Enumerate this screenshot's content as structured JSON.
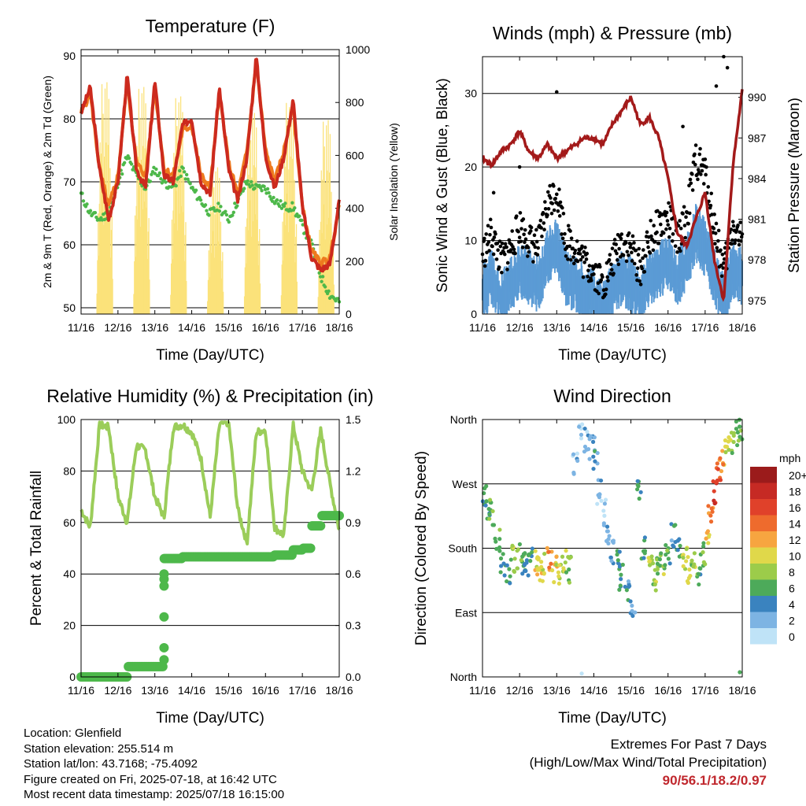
{
  "colors": {
    "temp_2m": "#cc2a1e",
    "temp_9m": "#ee7a1e",
    "dewpoint": "#4db84a",
    "solar": "#fbe27a",
    "wind": "#5b9bd5",
    "gust": "#000000",
    "pressure": "#a31a1a",
    "rh": "#9bcd5a",
    "precip": "#4db84a",
    "extremes": "#c0272d"
  },
  "x_ticks": [
    "11/16",
    "12/16",
    "13/16",
    "14/16",
    "15/16",
    "16/16",
    "17/16",
    "18/16"
  ],
  "panels": {
    "temperature": {
      "title": "Temperature (F)",
      "ylabel_left": "2m & 9m T (Red, Orange) & 2m Td (Green)",
      "ylabel_right": "Solar Insolation (Yellow)",
      "xlabel": "Time (Day/UTC)"
    },
    "winds": {
      "title": "Winds (mph) & Pressure (mb)",
      "ylabel_left": "Sonic Wind & Gust (Blue, Black)",
      "ylabel_right": "Station Pressure (Maroon)",
      "xlabel": "Time (Day/UTC)"
    },
    "humidity": {
      "title": "Relative Humidity (%) & Precipitation (in)",
      "ylabel_left": "Percent & Total Rainfall",
      "xlabel": "Time (Day/UTC)"
    },
    "direction": {
      "title": "Wind Direction",
      "ylabel_left": "Direction (Colored By Speed)",
      "xlabel": "Time (Day/UTC)",
      "legend_title": "mph",
      "legend_labels": [
        "20+",
        "18",
        "16",
        "14",
        "12",
        "10",
        "8",
        "6",
        "4",
        "2",
        "0"
      ],
      "legend_colors": [
        "#9b1b1b",
        "#c62a24",
        "#e0412a",
        "#ee6b2d",
        "#f7a540",
        "#e0d84a",
        "#9ccc4a",
        "#4daa5a",
        "#3a83bf",
        "#7db4e3",
        "#bfe3f7"
      ]
    }
  },
  "chart_data": [
    {
      "type": "line",
      "title": "Temperature (F)",
      "xlabel": "Time (Day/UTC)",
      "x": [
        0,
        0.25,
        0.5,
        0.75,
        1,
        1.25,
        1.5,
        1.75,
        2,
        2.25,
        2.5,
        2.75,
        3,
        3.25,
        3.5,
        3.75,
        4,
        4.25,
        4.5,
        4.75,
        5,
        5.25,
        5.5,
        5.75,
        6,
        6.25,
        6.5,
        6.75,
        7
      ],
      "ylim": [
        49,
        91
      ],
      "y2lim": [
        0,
        1000
      ],
      "series": [
        {
          "name": "2m T (Red)",
          "values": [
            81,
            85,
            72,
            64,
            70,
            87,
            72,
            69,
            86,
            71,
            70,
            79,
            80,
            70,
            68,
            85,
            72,
            67,
            74,
            90,
            74,
            69,
            74,
            83,
            66,
            58,
            56,
            57,
            67
          ]
        },
        {
          "name": "9m T (Orange)",
          "values": [
            81,
            84,
            72,
            66,
            71,
            86,
            73,
            71,
            85,
            72,
            71,
            78,
            79,
            71,
            69,
            84,
            73,
            68,
            75,
            89,
            75,
            70,
            75,
            82,
            66,
            59,
            57,
            58,
            66
          ]
        },
        {
          "name": "2m Td (Green)",
          "values": [
            68,
            65,
            64,
            65,
            70,
            74,
            71,
            69,
            72,
            70,
            69,
            72,
            69,
            67,
            65,
            66,
            64,
            67,
            70,
            69,
            69,
            67,
            66,
            66,
            63,
            60,
            55,
            52,
            51
          ]
        },
        {
          "name": "Solar Insolation (Yellow)",
          "values": [
            900,
            980,
            0,
            0,
            0,
            960,
            0,
            0,
            920,
            0,
            0,
            620,
            600,
            0,
            0,
            850,
            0,
            0,
            500,
            900,
            0,
            0,
            0,
            820,
            0,
            0,
            0,
            0,
            850
          ]
        }
      ]
    },
    {
      "type": "line",
      "title": "Winds (mph) & Pressure (mb)",
      "xlabel": "Time (Day/UTC)",
      "x": [
        0,
        0.25,
        0.5,
        0.75,
        1,
        1.25,
        1.5,
        1.75,
        2,
        2.25,
        2.5,
        2.75,
        3,
        3.25,
        3.5,
        3.75,
        4,
        4.25,
        4.5,
        4.75,
        5,
        5.25,
        5.5,
        5.75,
        6,
        6.25,
        6.5,
        6.75,
        7
      ],
      "ylim": [
        0,
        35
      ],
      "y2lim": [
        974,
        993
      ],
      "series": [
        {
          "name": "Sonic Wind (Blue)",
          "values": [
            4,
            6,
            3,
            5,
            7,
            6,
            5,
            9,
            10,
            6,
            5,
            4,
            3,
            2,
            4,
            6,
            5,
            3,
            6,
            7,
            8,
            6,
            8,
            12,
            10,
            6,
            3,
            7,
            6
          ]
        },
        {
          "name": "Gust (Black)",
          "values": [
            8,
            11,
            7,
            9,
            12,
            10,
            9,
            15,
            17,
            10,
            9,
            7,
            6,
            4,
            7,
            10,
            9,
            6,
            10,
            12,
            13,
            10,
            13,
            21,
            19,
            12,
            6,
            12,
            10
          ]
        },
        {
          "name": "Station Pressure (Maroon)",
          "values": [
            985.5,
            985,
            986,
            986.5,
            987.5,
            986,
            985.5,
            986.5,
            985.5,
            986,
            986.5,
            987,
            987,
            986.5,
            988,
            989,
            990,
            988,
            988.5,
            987,
            984,
            980,
            979,
            981,
            983,
            978,
            975,
            985,
            990.5
          ]
        }
      ]
    },
    {
      "type": "line",
      "title": "Relative Humidity (%) & Precipitation (in)",
      "xlabel": "Time (Day/UTC)",
      "x": [
        0,
        0.25,
        0.5,
        0.75,
        1,
        1.25,
        1.5,
        1.75,
        2,
        2.25,
        2.5,
        2.75,
        3,
        3.25,
        3.5,
        3.75,
        4,
        4.25,
        4.5,
        4.75,
        5,
        5.25,
        5.5,
        5.75,
        6,
        6.25,
        6.5,
        6.75,
        7
      ],
      "ylim": [
        0,
        100
      ],
      "y2lim": [
        0,
        1.5
      ],
      "series": [
        {
          "name": "Relative Humidity",
          "values": [
            65,
            58,
            98,
            97,
            70,
            60,
            90,
            88,
            70,
            62,
            97,
            98,
            95,
            85,
            62,
            98,
            99,
            65,
            52,
            95,
            96,
            58,
            55,
            98,
            80,
            72,
            96,
            75,
            57
          ]
        },
        {
          "name": "Total Precipitation",
          "values": [
            0,
            0,
            0,
            0,
            0,
            0.06,
            0.06,
            0.06,
            0.06,
            0.69,
            0.69,
            0.7,
            0.7,
            0.7,
            0.7,
            0.7,
            0.7,
            0.7,
            0.7,
            0.7,
            0.7,
            0.71,
            0.71,
            0.74,
            0.75,
            0.88,
            0.94,
            0.94,
            0.94
          ]
        }
      ]
    },
    {
      "type": "scatter",
      "title": "Wind Direction",
      "xlabel": "Time (Day/UTC)",
      "yticks": [
        "North",
        "East",
        "South",
        "West",
        "North"
      ],
      "ylim": [
        0,
        360
      ],
      "series": [
        {
          "name": "Direction",
          "x": [
            0.05,
            0.15,
            0.25,
            0.4,
            0.55,
            0.7,
            0.85,
            1.0,
            1.1,
            1.2,
            1.3,
            1.45,
            1.55,
            1.65,
            1.8,
            1.95,
            2.05,
            2.2,
            2.35,
            2.5,
            2.65,
            2.8,
            2.95,
            3.05,
            3.15,
            3.25,
            3.35,
            3.5,
            3.65,
            3.75,
            3.9,
            4.05,
            4.2,
            4.35,
            4.5,
            4.65,
            4.75,
            4.85,
            5.0,
            5.15,
            5.3,
            5.45,
            5.55,
            5.7,
            5.85,
            5.95,
            6.05,
            6.15,
            6.25,
            6.35,
            6.45,
            6.6,
            6.75,
            6.9,
            6.95
          ],
          "y": [
            250,
            240,
            230,
            195,
            160,
            150,
            165,
            170,
            155,
            150,
            165,
            160,
            150,
            155,
            165,
            150,
            145,
            160,
            150,
            300,
            350,
            330,
            320,
            310,
            260,
            230,
            200,
            175,
            160,
            140,
            120,
            100,
            260,
            180,
            150,
            140,
            150,
            160,
            170,
            200,
            185,
            170,
            150,
            160,
            140,
            170,
            200,
            230,
            260,
            280,
            300,
            320,
            330,
            340,
            350
          ],
          "speed": [
            6,
            5,
            7,
            6,
            5,
            6,
            8,
            7,
            6,
            4,
            5,
            10,
            11,
            10,
            12,
            11,
            9,
            8,
            7,
            2,
            1,
            2,
            3,
            4,
            2,
            1,
            2,
            3,
            4,
            5,
            4,
            3,
            5,
            6,
            9,
            8,
            7,
            8,
            6,
            4,
            5,
            9,
            10,
            8,
            6,
            7,
            11,
            14,
            17,
            15,
            12,
            9,
            8,
            7,
            6
          ]
        }
      ]
    }
  ],
  "info": {
    "location": "Location: Glenfield",
    "elevation": "Station elevation: 255.514 m",
    "latlon": "Station lat/lon: 43.7168; -75.4092",
    "created": "Figure created on Fri, 2025-07-18, at 16:42 UTC",
    "recent": "Most recent data timestamp: 2025/07/18 16:15:00"
  },
  "extremes": {
    "label1": "Extremes For Past 7 Days",
    "label2": "(High/Low/Max Wind/Total Precipitation)",
    "values": "90/56.1/18.2/0.97"
  }
}
